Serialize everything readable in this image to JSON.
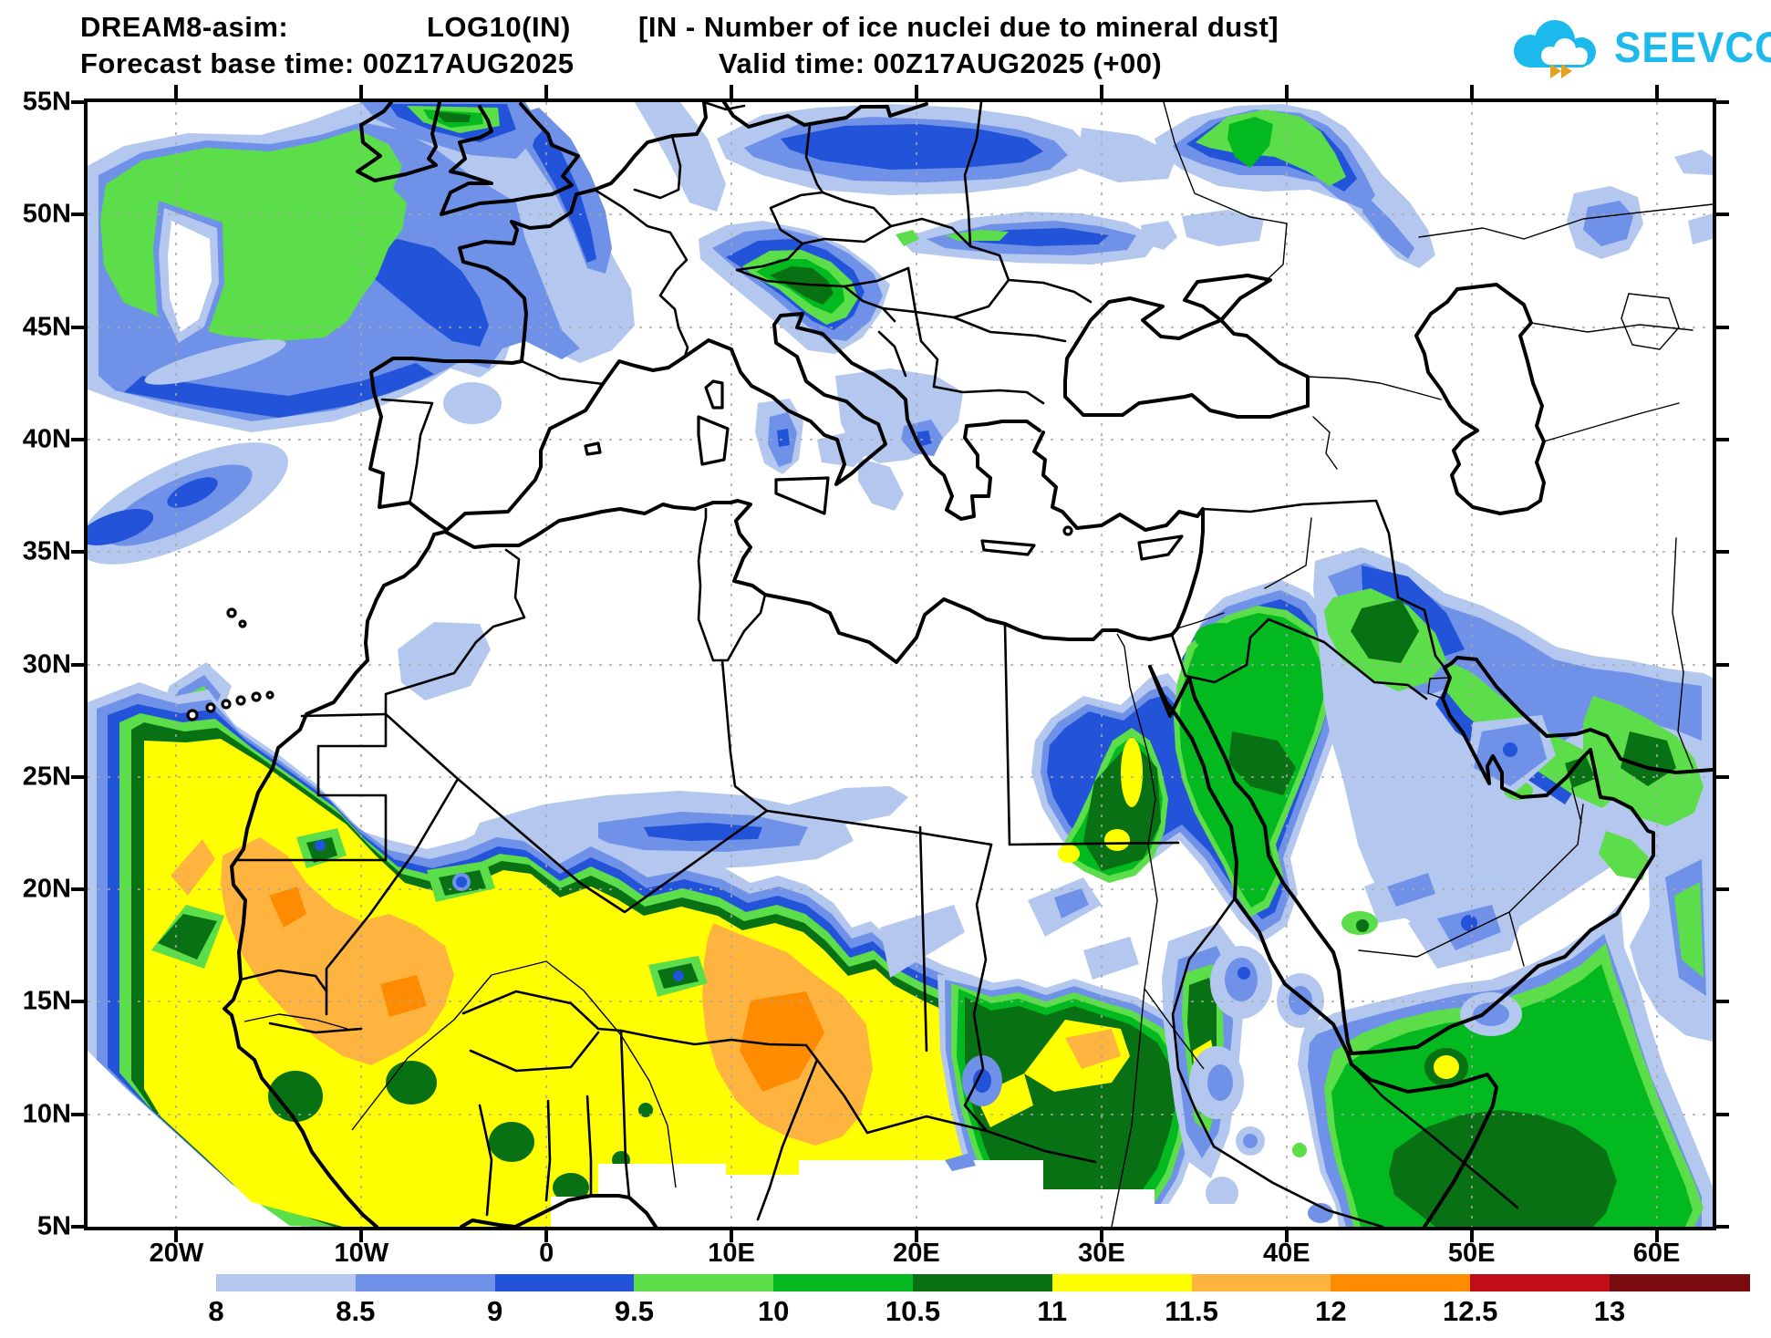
{
  "header": {
    "line1": {
      "model": "DREAM8-asim:",
      "variable": "LOG10(IN)",
      "description": "[IN - Number of ice nuclei due to mineral dust]"
    },
    "line2": {
      "base": "Forecast base time: 00Z17AUG2025",
      "valid": "Valid time: 00Z17AUG2025 (+00)"
    }
  },
  "logo": {
    "text": "SEEVCCC",
    "brand_color": "#1cb9ec",
    "arrow_color": "#e2a21f"
  },
  "map": {
    "projection_extent": {
      "lon_min": "25W",
      "lon_max": "63E",
      "lat_min": "5N",
      "lat_max": "55N"
    },
    "y_axis_labels": [
      "55N",
      "50N",
      "45N",
      "40N",
      "35N",
      "30N",
      "25N",
      "20N",
      "15N",
      "10N",
      "5N"
    ],
    "x_axis_labels": [
      "20W",
      "10W",
      "0",
      "10E",
      "20E",
      "30E",
      "40E",
      "50E",
      "60E"
    ]
  },
  "legend": {
    "title": "LOG10(IN)",
    "values": [
      "8",
      "8.5",
      "9",
      "9.5",
      "10",
      "10.5",
      "11",
      "11.5",
      "12",
      "12.5",
      "13"
    ],
    "colors": [
      "#b4c7ee",
      "#6f92e8",
      "#2353d8",
      "#5cdd4a",
      "#02ba1f",
      "#077114",
      "#ffff00",
      "#ffb440",
      "#ff8c00",
      "#c00d16",
      "#7a0a10"
    ]
  }
}
